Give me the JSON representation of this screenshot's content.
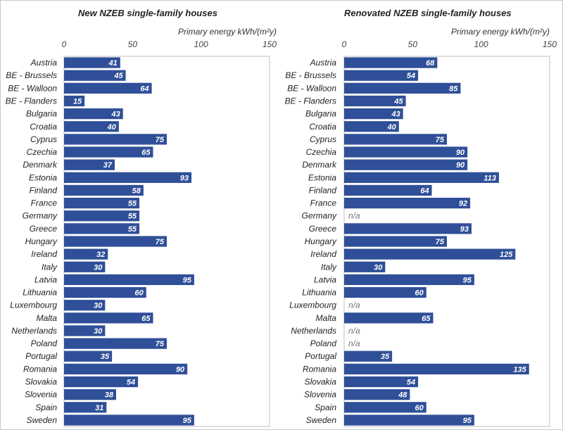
{
  "chart_data": [
    {
      "type": "bar",
      "title": "New NZEB single-family houses",
      "xlabel": "Primary energy  kWh/(m²y)",
      "xlim": [
        0,
        150
      ],
      "ticks": [
        "0",
        "50",
        "100",
        "150"
      ],
      "categories": [
        "Austria",
        "BE - Brussels",
        "BE - Walloon",
        "BE - Flanders",
        "Bulgaria",
        "Croatia",
        "Cyprus",
        "Czechia",
        "Denmark",
        "Estonia",
        "Finland",
        "France",
        "Germany",
        "Greece",
        "Hungary",
        "Ireland",
        "Italy",
        "Latvia",
        "Lithuania",
        "Luxembourg",
        "Malta",
        "Netherlands",
        "Poland",
        "Portugal",
        "Romania",
        "Slovakia",
        "Slovenia",
        "Spain",
        "Sweden"
      ],
      "values": [
        41,
        45,
        64,
        15,
        43,
        40,
        75,
        65,
        37,
        93,
        58,
        55,
        55,
        55,
        75,
        32,
        30,
        95,
        60,
        30,
        65,
        30,
        75,
        35,
        90,
        54,
        38,
        31,
        95
      ],
      "bar_color": "#2F4F98"
    },
    {
      "type": "bar",
      "title": "Renovated NZEB single-family houses",
      "xlabel": "Primary energy  kWh/(m²y)",
      "xlim": [
        0,
        150
      ],
      "ticks": [
        "0",
        "50",
        "100",
        "150"
      ],
      "categories": [
        "Austria",
        "BE - Brussels",
        "BE - Walloon",
        "BE - Flanders",
        "Bulgaria",
        "Croatia",
        "Cyprus",
        "Czechia",
        "Denmark",
        "Estonia",
        "Finland",
        "France",
        "Germany",
        "Greece",
        "Hungary",
        "Ireland",
        "Italy",
        "Latvia",
        "Lithuania",
        "Luxembourg",
        "Malta",
        "Netherlands",
        "Poland",
        "Portugal",
        "Romania",
        "Slovakia",
        "Slovenia",
        "Spain",
        "Sweden"
      ],
      "values": [
        68,
        54,
        85,
        45,
        43,
        40,
        75,
        90,
        90,
        113,
        64,
        92,
        null,
        93,
        75,
        125,
        30,
        95,
        60,
        null,
        65,
        null,
        null,
        35,
        135,
        54,
        48,
        60,
        95
      ],
      "na_label": "n/a",
      "bar_color": "#2F4F98"
    }
  ]
}
